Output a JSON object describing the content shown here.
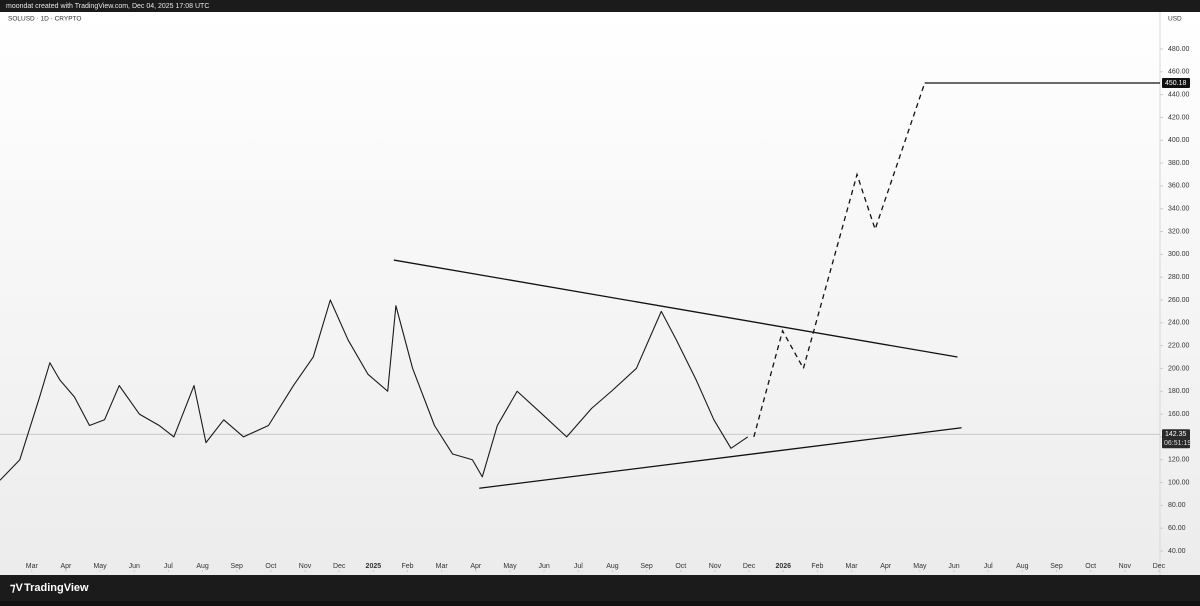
{
  "header": "moondat created with TradingView.com, Dec 04, 2025 17:08 UTC",
  "footer": "TradingView",
  "chart_data": {
    "type": "line",
    "symbol": "SOLUSD · 1D · CRYPTO",
    "currency": "USD",
    "color": "#1a1a1a",
    "x": [
      1.07,
      1.65,
      2.23,
      2.53,
      2.82,
      3.25,
      3.69,
      4.13,
      4.56,
      5.15,
      5.73,
      6.16,
      6.75,
      7.1,
      7.62,
      8.2,
      8.93,
      9.66,
      10.24,
      10.74,
      11.26,
      11.84,
      12.42,
      12.66,
      13.15,
      13.79,
      14.32,
      14.9,
      15.19,
      15.63,
      16.21,
      16.94,
      17.66,
      18.39,
      18.97,
      19.7,
      20.43,
      20.87,
      21.45,
      21.97,
      22.47,
      22.96
    ],
    "values": [
      102,
      120,
      175,
      205,
      190,
      175,
      150,
      155,
      185,
      160,
      150,
      140,
      185,
      135,
      155,
      140,
      150,
      185,
      210,
      260,
      225,
      195,
      180,
      255,
      200,
      150,
      125,
      120,
      105,
      150,
      180,
      160,
      140,
      165,
      180,
      200,
      250,
      225,
      190,
      155,
      130,
      140
    ],
    "trendlines": [
      {
        "x": [
          12.6,
          29.1
        ],
        "values": [
          295,
          210
        ]
      },
      {
        "x": [
          15.1,
          29.22
        ],
        "values": [
          95,
          148
        ]
      }
    ],
    "projection": {
      "x": [
        23.14,
        23.98,
        24.59,
        26.16,
        26.69,
        28.14
      ],
      "values": [
        140,
        233,
        200,
        370,
        322,
        450
      ]
    },
    "target": {
      "value": 450.18,
      "x": 28.14
    },
    "last_price": 142.35,
    "countdown": "06:51:19",
    "xlim": [
      1.07,
      35.03
    ],
    "ylim": [
      21.6,
      512.4
    ],
    "xticks": [
      {
        "value": 2,
        "label": "Mar"
      },
      {
        "value": 3,
        "label": "Apr"
      },
      {
        "value": 4,
        "label": "May"
      },
      {
        "value": 5,
        "label": "Jun"
      },
      {
        "value": 6,
        "label": "Jul"
      },
      {
        "value": 7,
        "label": "Aug"
      },
      {
        "value": 8,
        "label": "Sep"
      },
      {
        "value": 9,
        "label": "Oct"
      },
      {
        "value": 10,
        "label": "Nov"
      },
      {
        "value": 11,
        "label": "Dec"
      },
      {
        "value": 12,
        "label": "2025"
      },
      {
        "value": 13,
        "label": "Feb"
      },
      {
        "value": 14,
        "label": "Mar"
      },
      {
        "value": 15,
        "label": "Apr"
      },
      {
        "value": 16,
        "label": "May"
      },
      {
        "value": 17,
        "label": "Jun"
      },
      {
        "value": 18,
        "label": "Jul"
      },
      {
        "value": 19,
        "label": "Aug"
      },
      {
        "value": 20,
        "label": "Sep"
      },
      {
        "value": 21,
        "label": "Oct"
      },
      {
        "value": 22,
        "label": "Nov"
      },
      {
        "value": 23,
        "label": "Dec"
      },
      {
        "value": 24,
        "label": "2026"
      },
      {
        "value": 25,
        "label": "Feb"
      },
      {
        "value": 26,
        "label": "Mar"
      },
      {
        "value": 27,
        "label": "Apr"
      },
      {
        "value": 28,
        "label": "May"
      },
      {
        "value": 29,
        "label": "Jun"
      },
      {
        "value": 30,
        "label": "Jul"
      },
      {
        "value": 31,
        "label": "Aug"
      },
      {
        "value": 32,
        "label": "Sep"
      },
      {
        "value": 33,
        "label": "Oct"
      },
      {
        "value": 34,
        "label": "Nov"
      },
      {
        "value": 35,
        "label": "Dec"
      }
    ],
    "yticks": [
      {
        "value": 40,
        "label": "40.00"
      },
      {
        "value": 60,
        "label": "60.00"
      },
      {
        "value": 80,
        "label": "80.00"
      },
      {
        "value": 100,
        "label": "100.00"
      },
      {
        "value": 120,
        "label": "120.00"
      },
      {
        "value": 140,
        "label": "140.00"
      },
      {
        "value": 160,
        "label": "160.00"
      },
      {
        "value": 180,
        "label": "180.00"
      },
      {
        "value": 200,
        "label": "200.00"
      },
      {
        "value": 220,
        "label": "220.00"
      },
      {
        "value": 240,
        "label": "240.00"
      },
      {
        "value": 260,
        "label": "260.00"
      },
      {
        "value": 280,
        "label": "280.00"
      },
      {
        "value": 300,
        "label": "300.00"
      },
      {
        "value": 320,
        "label": "320.00"
      },
      {
        "value": 340,
        "label": "340.00"
      },
      {
        "value": 360,
        "label": "360.00"
      },
      {
        "value": 380,
        "label": "380.00"
      },
      {
        "value": 400,
        "label": "400.00"
      },
      {
        "value": 420,
        "label": "420.00"
      },
      {
        "value": 440,
        "label": "440.00"
      },
      {
        "value": 460,
        "label": "460.00"
      },
      {
        "value": 480,
        "label": "480.00"
      }
    ]
  }
}
